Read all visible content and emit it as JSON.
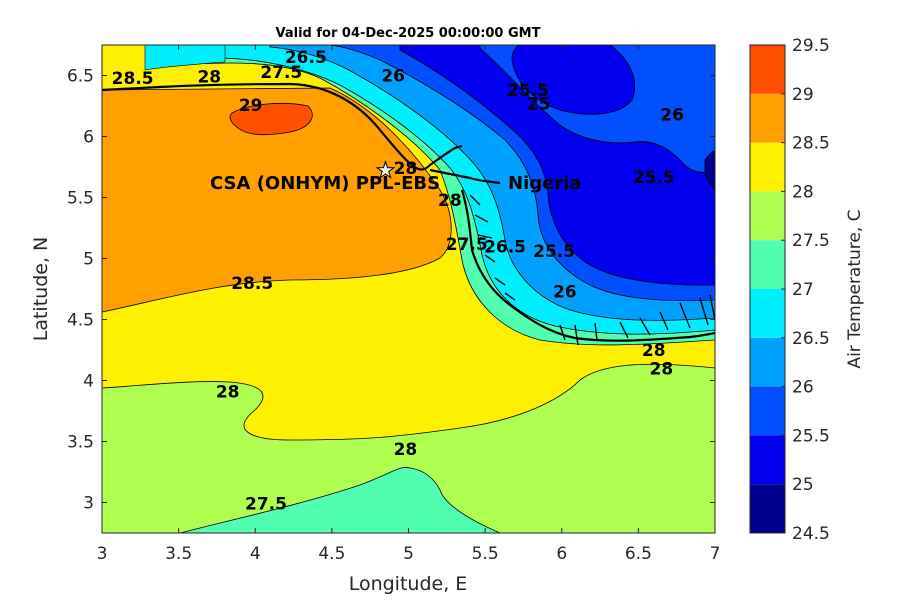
{
  "chart_data": {
    "type": "contour",
    "title": "Valid for 04-Dec-2025 00:00:00 GMT",
    "xlabel": "Longitude, E",
    "ylabel": "Latitude, N",
    "xlim": [
      3,
      7
    ],
    "ylim": [
      2.75,
      6.75
    ],
    "xticks": [
      "3",
      "3.5",
      "4",
      "4.5",
      "5",
      "5.5",
      "6",
      "6.5",
      "7"
    ],
    "yticks": [
      "3",
      "3.5",
      "4",
      "4.5",
      "5",
      "5.5",
      "6",
      "6.5"
    ],
    "colorbar": {
      "label": "Air Temperature, C",
      "levels": [
        24.5,
        25,
        25.5,
        26,
        26.5,
        27,
        27.5,
        28,
        28.5,
        29,
        29.5
      ],
      "tick_labels": [
        "24.5",
        "25",
        "25.5",
        "26",
        "26.5",
        "27",
        "27.5",
        "28",
        "28.5",
        "29",
        "29.5"
      ],
      "colors": [
        "#00008f",
        "#0000ef",
        "#0050ff",
        "#00a0ff",
        "#00efff",
        "#50ffaf",
        "#afff50",
        "#ffef00",
        "#ffa000",
        "#ff5000",
        "#ef0000"
      ]
    },
    "contour_labels": [
      {
        "text": "28.5",
        "lon": 3.2,
        "lat": 6.48
      },
      {
        "text": "28",
        "lon": 3.7,
        "lat": 6.49
      },
      {
        "text": "27.5",
        "lon": 4.17,
        "lat": 6.53
      },
      {
        "text": "26.5",
        "lon": 4.33,
        "lat": 6.65
      },
      {
        "text": "26",
        "lon": 4.9,
        "lat": 6.5
      },
      {
        "text": "25.5",
        "lon": 5.78,
        "lat": 6.38
      },
      {
        "text": "25",
        "lon": 5.85,
        "lat": 6.27
      },
      {
        "text": "26",
        "lon": 6.72,
        "lat": 6.18
      },
      {
        "text": "25.5",
        "lon": 6.6,
        "lat": 5.67
      },
      {
        "text": "29",
        "lon": 3.97,
        "lat": 6.26
      },
      {
        "text": "28",
        "lon": 4.98,
        "lat": 5.74
      },
      {
        "text": "28",
        "lon": 5.27,
        "lat": 5.48
      },
      {
        "text": "27.5",
        "lon": 5.38,
        "lat": 5.12
      },
      {
        "text": "26.5",
        "lon": 5.63,
        "lat": 5.1
      },
      {
        "text": "25.5",
        "lon": 5.95,
        "lat": 5.06
      },
      {
        "text": "26",
        "lon": 6.02,
        "lat": 4.73
      },
      {
        "text": "28.5",
        "lon": 3.98,
        "lat": 4.8
      },
      {
        "text": "28",
        "lon": 6.6,
        "lat": 4.25
      },
      {
        "text": "28",
        "lon": 6.65,
        "lat": 4.1
      },
      {
        "text": "28",
        "lon": 3.82,
        "lat": 3.91
      },
      {
        "text": "28",
        "lon": 4.98,
        "lat": 3.44
      },
      {
        "text": "27.5",
        "lon": 4.07,
        "lat": 2.99
      }
    ],
    "annotations": [
      {
        "text": "CSA (ONHYM) PPL-EBS",
        "lon": 4.85,
        "lat": 5.73,
        "marker": "star"
      },
      {
        "text": "Nigeria"
      }
    ]
  }
}
